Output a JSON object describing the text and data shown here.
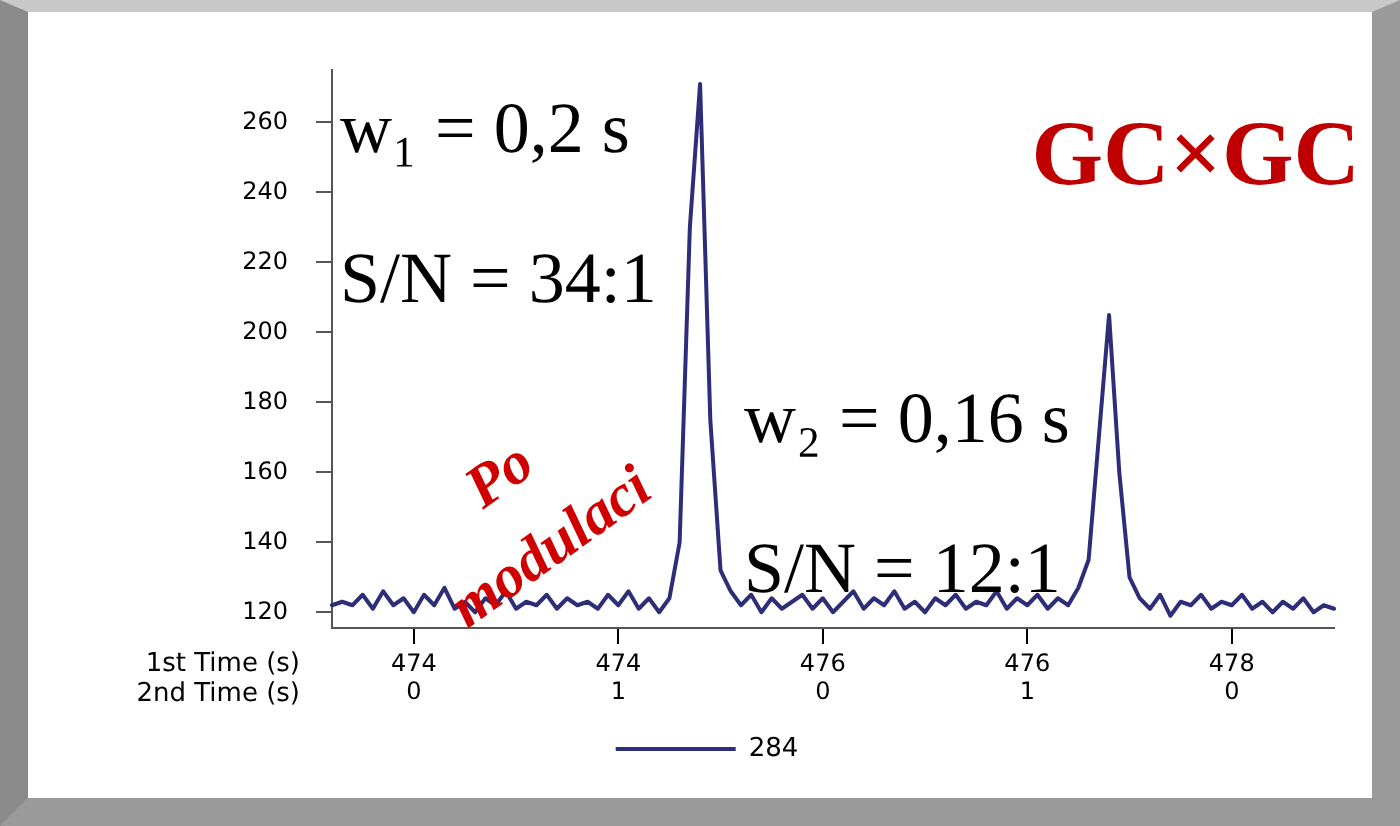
{
  "chart_data": {
    "type": "line",
    "annotations": [
      "w₁ = 0,2 s",
      "S/N = 34:1",
      "w₂ = 0,16 s",
      "S/N = 12:1",
      "GC×GC",
      "Po modulaci"
    ],
    "xlabel": "1st Time (s)\n2nd Time (s)",
    "ylim": [
      115.5,
      275
    ],
    "yticks": [
      120,
      140,
      160,
      180,
      200,
      220,
      240,
      260
    ],
    "grid": false,
    "legend": "bottom",
    "marker": "none",
    "line_style": "solid",
    "categories": [
      null,
      null,
      null,
      null,
      null,
      null,
      null,
      null,
      "474\n0",
      null,
      null,
      null,
      null,
      null,
      null,
      null,
      null,
      null,
      null,
      null,
      null,
      null,
      null,
      null,
      null,
      null,
      null,
      null,
      "474\n1",
      null,
      null,
      null,
      null,
      null,
      null,
      null,
      null,
      null,
      null,
      null,
      null,
      null,
      null,
      null,
      null,
      null,
      null,
      null,
      "476\n0",
      null,
      null,
      null,
      null,
      null,
      null,
      null,
      null,
      null,
      null,
      null,
      null,
      null,
      null,
      null,
      null,
      null,
      null,
      null,
      "476\n1",
      null,
      null,
      null,
      null,
      null,
      null,
      null,
      null,
      null,
      null,
      null,
      null,
      null,
      null,
      null,
      null,
      null,
      null,
      null,
      "478\n0",
      null,
      null,
      null,
      null,
      null,
      null,
      null,
      null,
      null,
      null
    ],
    "series": [
      {
        "name": "284",
        "color": "#2e2e78",
        "values": [
          122,
          123,
          122,
          125,
          121,
          126,
          122,
          124,
          120,
          125,
          122,
          127,
          121,
          123,
          120,
          124,
          122,
          126,
          121,
          123,
          122,
          125,
          121,
          124,
          122,
          123,
          121,
          125,
          122,
          126,
          121,
          124,
          120,
          124,
          140,
          230,
          271,
          175,
          132,
          126,
          122,
          125,
          120,
          124,
          121,
          123,
          125,
          121,
          124,
          120,
          123,
          126,
          121,
          124,
          122,
          126,
          121,
          123,
          120,
          124,
          122,
          125,
          121,
          123,
          122,
          126,
          121,
          124,
          122,
          125,
          121,
          124,
          122,
          127,
          135,
          170,
          205,
          160,
          130,
          124,
          121,
          125,
          119,
          123,
          122,
          125,
          121,
          123,
          122,
          125,
          121,
          123,
          120,
          123,
          121,
          124,
          120,
          122,
          121
        ]
      }
    ]
  }
}
